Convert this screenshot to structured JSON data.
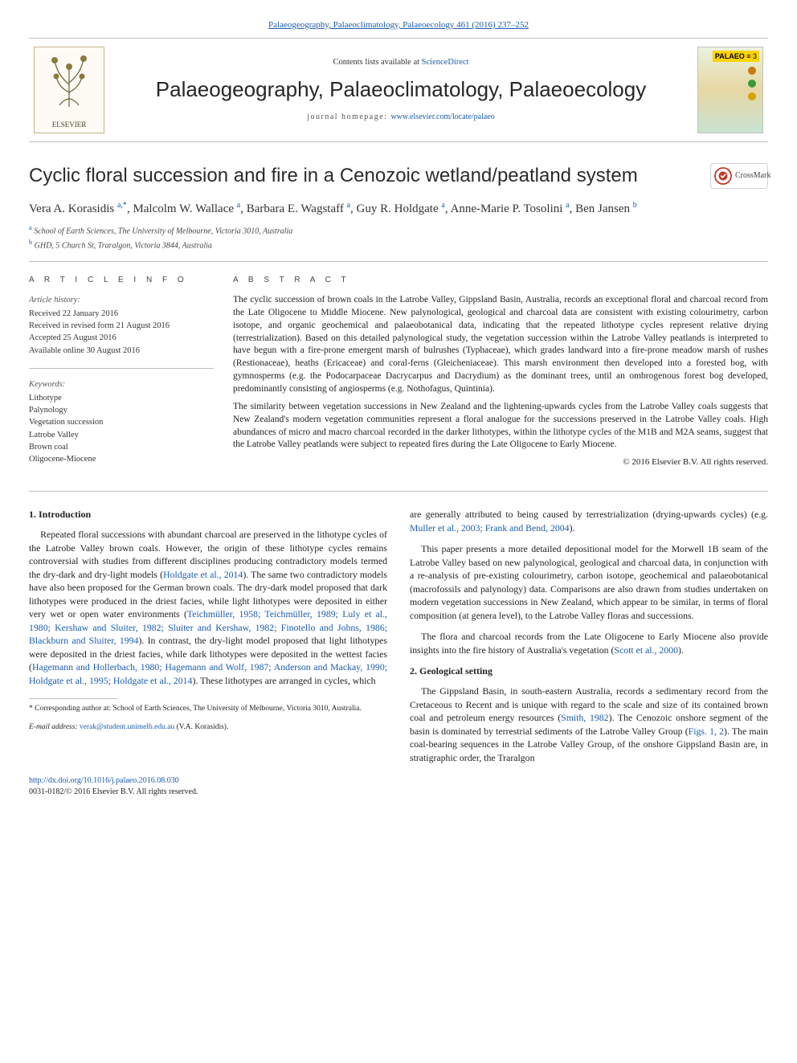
{
  "links": {
    "top_citation": "Palaeogeography, Palaeoclimatology, Palaeoecology 461 (2016) 237–252",
    "contents_prefix": "Contents lists available at ",
    "contents_link": "ScienceDirect",
    "journal_title": "Palaeogeography, Palaeoclimatology, Palaeoecology",
    "homepage_label": "journal homepage: ",
    "homepage_url": "www.elsevier.com/locate/palaeo"
  },
  "logos": {
    "elsevier_text": "ELSEVIER",
    "palaeo_brand": "PALAEO",
    "palaeo_brand_suffix": "≡ 3",
    "crossmark_text": "CrossMark"
  },
  "cover_dots": [
    "#c97a12",
    "#3a9a3a",
    "#d4a300"
  ],
  "article": {
    "title": "Cyclic floral succession and fire in a Cenozoic wetland/peatland system",
    "authors_html": "Vera A. Korasidis <sup>a,*</sup>, Malcolm W. Wallace <sup>a</sup>, Barbara E. Wagstaff <sup>a</sup>, Guy R. Holdgate <sup>a</sup>, Anne-Marie P. Tosolini <sup>a</sup>, Ben Jansen <sup>b</sup>",
    "affiliations": [
      {
        "sup": "a",
        "text": "School of Earth Sciences, The University of Melbourne, Victoria 3010, Australia"
      },
      {
        "sup": "b",
        "text": "GHD, 5 Church St, Traralgon, Victoria 3844, Australia"
      }
    ]
  },
  "info": {
    "section_label": "A R T I C L E  I N F O",
    "history_label": "Article history:",
    "history": [
      "Received 22 January 2016",
      "Received in revised form 21 August 2016",
      "Accepted 25 August 2016",
      "Available online 30 August 2016"
    ],
    "keywords_label": "Keywords:",
    "keywords": [
      "Lithotype",
      "Palynology",
      "Vegetation succession",
      "Latrobe Valley",
      "Brown coal",
      "Oligocene-Miocene"
    ]
  },
  "abstract": {
    "section_label": "A B S T R A C T",
    "paragraphs": [
      "The cyclic succession of brown coals in the Latrobe Valley, Gippsland Basin, Australia, records an exceptional floral and charcoal record from the Late Oligocene to Middle Miocene. New palynological, geological and charcoal data are consistent with existing colourimetry, carbon isotope, and organic geochemical and palaeobotanical data, indicating that the repeated lithotype cycles represent relative drying (terrestrialization). Based on this detailed palynological study, the vegetation succession within the Latrobe Valley peatlands is interpreted to have begun with a fire-prone emergent marsh of bulrushes (Typhaceae), which grades landward into a fire-prone meadow marsh of rushes (Restionaceae), heaths (Ericaceae) and coral-ferns (Gleicheniaceae). This marsh environment then developed into a forested bog, with gymnosperms (e.g. the Podocarpaceae Dacrycarpus and Dacrydium) as the dominant trees, until an ombrogenous forest bog developed, predominantly consisting of angiosperms (e.g. Nothofagus, Quintinia).",
      "The similarity between vegetation successions in New Zealand and the lightening-upwards cycles from the Latrobe Valley coals suggests that New Zealand's modern vegetation communities represent a floral analogue for the successions preserved in the Latrobe Valley coals. High abundances of micro and macro charcoal recorded in the darker lithotypes, within the lithotype cycles of the M1B and M2A seams, suggest that the Latrobe Valley peatlands were subject to repeated fires during the Late Oligocene to Early Miocene."
    ],
    "copyright": "© 2016 Elsevier B.V. All rights reserved."
  },
  "body": {
    "intro_heading": "1. Introduction",
    "intro_paragraphs": [
      "Repeated floral successions with abundant charcoal are preserved in the lithotype cycles of the Latrobe Valley brown coals. However, the origin of these lithotype cycles remains controversial with studies from different disciplines producing contradictory models termed the dry-dark and dry-light models (<a href='#'>Holdgate et al., 2014</a>). The same two contradictory models have also been proposed for the German brown coals. The dry-dark model proposed that dark lithotypes were produced in the driest facies, while light lithotypes were deposited in either very wet or open water environments (<a href='#'>Teichmüller, 1958; Teichmüller, 1989; Luly et al., 1980; Kershaw and Sluiter, 1982; Sluiter and Kershaw, 1982; Finotello and Johns, 1986; Blackburn and Sluiter, 1994</a>). In contrast, the dry-light model proposed that light lithotypes were deposited in the driest facies, while dark lithotypes were deposited in the wettest facies (<a href='#'>Hagemann and Hollerbach, 1980; Hagemann and Wolf, 1987; Anderson and Mackay, 1990; Holdgate et al., 1995; Holdgate et al., 2014</a>). These lithotypes are arranged in cycles, which",
      "are generally attributed to being caused by terrestrialization (drying-upwards cycles) (e.g. <a href='#'>Muller et al., 2003; Frank and Bend, 2004</a>).",
      "This paper presents a more detailed depositional model for the Morwell 1B seam of the Latrobe Valley based on new palynological, geological and charcoal data, in conjunction with a re-analysis of pre-existing colourimetry, carbon isotope, geochemical and palaeobotanical (macrofossils and palynology) data. Comparisons are also drawn from studies undertaken on modern vegetation successions in New Zealand, which appear to be similar, in terms of floral composition (at genera level), to the Latrobe Valley floras and successions.",
      "The flora and charcoal records from the Late Oligocene to Early Miocene also provide insights into the fire history of Australia's vegetation (<a href='#'>Scott et al., 2000</a>)."
    ],
    "setting_heading": "2. Geological setting",
    "setting_paragraphs": [
      "The Gippsland Basin, in south-eastern Australia, records a sedimentary record from the Cretaceous to Recent and is unique with regard to the scale and size of its contained brown coal and petroleum energy resources (<a href='#'>Smith, 1982</a>). The Cenozoic onshore segment of the basin is dominated by terrestrial sediments of the Latrobe Valley Group (<a href='#'>Figs. 1, 2</a>). The main coal-bearing sequences in the Latrobe Valley Group, of the onshore Gippsland Basin are, in stratigraphic order, the Traralgon"
    ]
  },
  "footnote": {
    "corr_label": "* Corresponding author at: School of Earth Sciences, The University of Melbourne, Victoria 3010, Australia.",
    "email_label": "E-mail address: ",
    "email": "verak@student.unimelb.edu.au",
    "email_suffix": " (V.A. Korasidis)."
  },
  "footer": {
    "doi": "http://dx.doi.org/10.1016/j.palaeo.2016.08.030",
    "issn_line": "0031-0182/© 2016 Elsevier B.V. All rights reserved."
  },
  "colors": {
    "link": "#1a5cb0",
    "rule": "#bfbfbf",
    "text": "#222222"
  }
}
